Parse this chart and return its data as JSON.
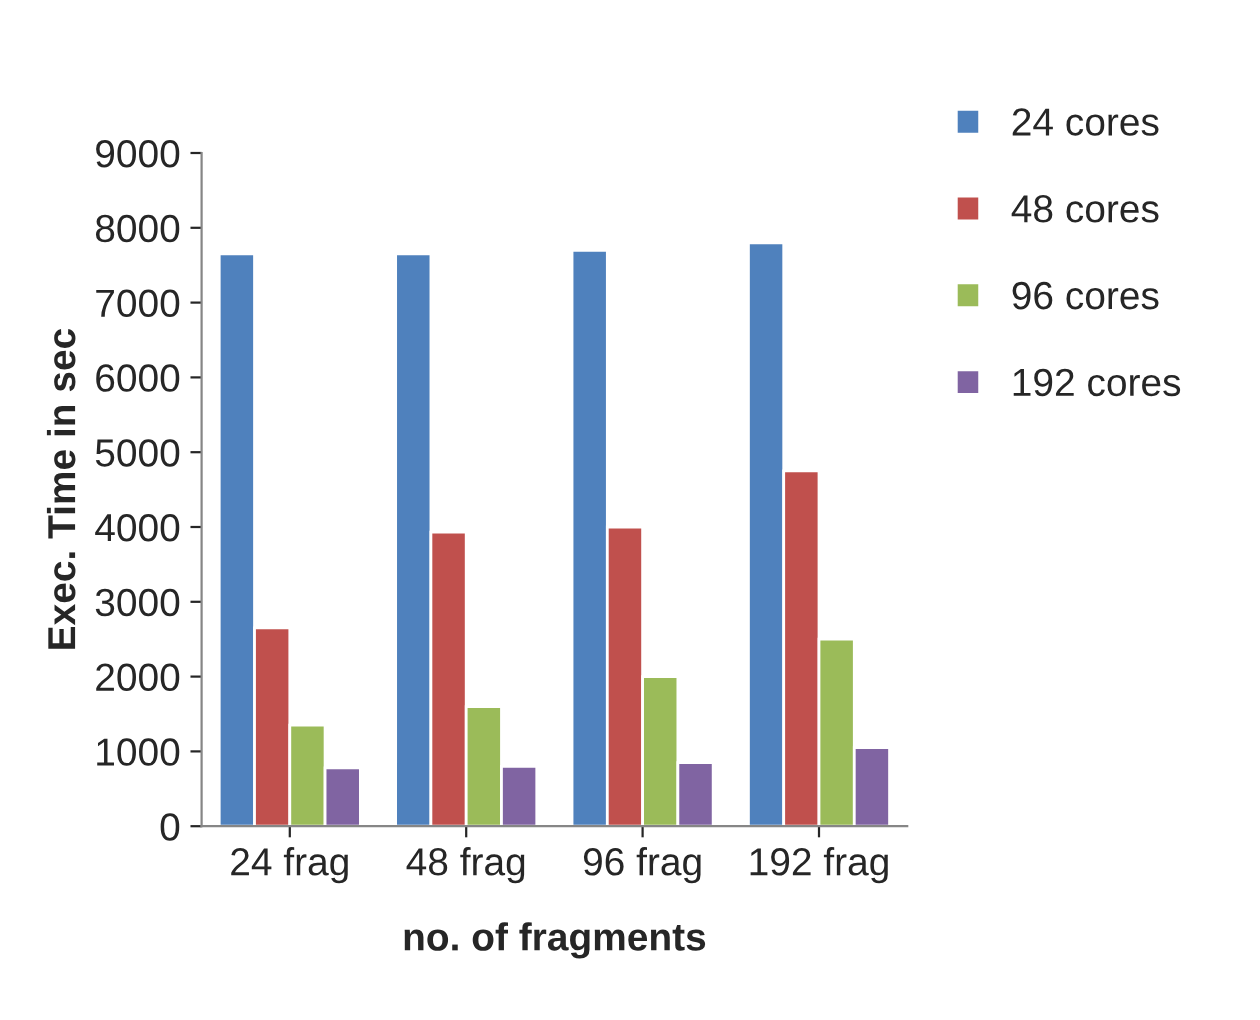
{
  "chart_data": {
    "type": "bar",
    "xlabel": "no. of fragments",
    "ylabel": "Exec. Time in sec",
    "categories": [
      "24 frag",
      "48 frag",
      "96 frag",
      "192 frag"
    ],
    "series": [
      {
        "name": "24 cores",
        "color": "#4f81bd",
        "values": [
          7650,
          7650,
          7700,
          7800
        ]
      },
      {
        "name": "48 cores",
        "color": "#c0504d",
        "values": [
          2650,
          3930,
          4000,
          4750
        ]
      },
      {
        "name": "96 cores",
        "color": "#9bbb59",
        "values": [
          1350,
          1600,
          2000,
          2500
        ]
      },
      {
        "name": "192 cores",
        "color": "#8064a2",
        "values": [
          780,
          800,
          850,
          1050
        ]
      }
    ],
    "ylim": [
      0,
      9000
    ],
    "yticks": [
      0,
      1000,
      2000,
      3000,
      4000,
      5000,
      6000,
      7000,
      8000,
      9000
    ],
    "grid": false,
    "legend": "top right"
  }
}
